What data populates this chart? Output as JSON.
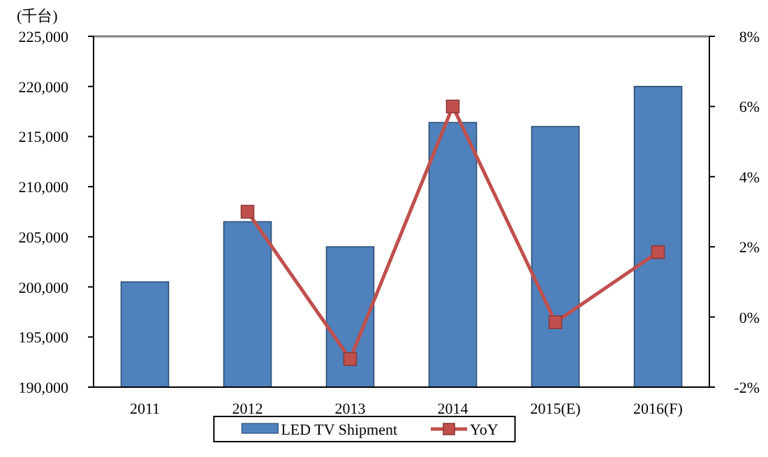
{
  "chart_data": {
    "type": "bar",
    "ylabel": "(千台)",
    "categories": [
      "2011",
      "2012",
      "2013",
      "2014",
      "2015(E)",
      "2016(F)"
    ],
    "series": [
      {
        "name": "LED TV Shipment",
        "color": "#4f81bd",
        "values": [
          200500,
          206500,
          204000,
          216400,
          216000,
          220000
        ]
      },
      {
        "name": "YoY",
        "type": "line",
        "axis": "y2",
        "color": "#c0504d",
        "marker": "square",
        "values": [
          null,
          3.0,
          -1.2,
          6.0,
          -0.15,
          1.85
        ]
      }
    ],
    "ylim": [
      190000,
      225000
    ],
    "yticks": [
      {
        "value": 190000,
        "label": "190,000"
      },
      {
        "value": 195000,
        "label": "195,000"
      },
      {
        "value": 200000,
        "label": "200,000"
      },
      {
        "value": 205000,
        "label": "205,000"
      },
      {
        "value": 210000,
        "label": "210,000"
      },
      {
        "value": 215000,
        "label": "215,000"
      },
      {
        "value": 220000,
        "label": "220,000"
      },
      {
        "value": 225000,
        "label": "225,000"
      }
    ],
    "y2lim": [
      -2,
      8
    ],
    "y2ticks": [
      {
        "value": -2,
        "label": "-2%"
      },
      {
        "value": 0,
        "label": "0%"
      },
      {
        "value": 2,
        "label": "2%"
      },
      {
        "value": 4,
        "label": "4%"
      },
      {
        "value": 6,
        "label": "6%"
      },
      {
        "value": 8,
        "label": "8%"
      }
    ],
    "legend": "bottom"
  }
}
